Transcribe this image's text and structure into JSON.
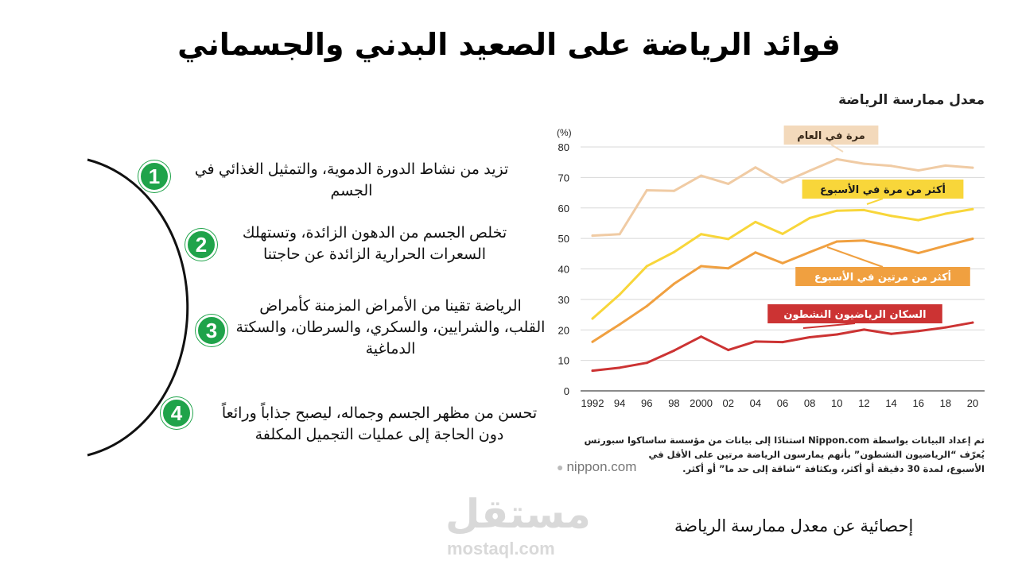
{
  "page": {
    "title": "فوائد الرياضة على الصعيد البدني والجسماني",
    "caption": "إحصائية عن معدل ممارسة الرياضة"
  },
  "benefits": [
    {
      "number": "1",
      "lines": [
        "تزيد من نشاط الدورة الدموية، والتمثيل الغذائي في الجسم"
      ]
    },
    {
      "number": "2",
      "lines": [
        "تخلص الجسم من الدهون الزائدة، وتستهلك",
        "السعرات الحرارية الزائدة عن حاجتنا"
      ]
    },
    {
      "number": "3",
      "lines": [
        "الرياضة تقينا من الأمراض المزمنة كأمراض",
        "القلب، والشرايين، والسكري، والسرطان، والسكتة",
        "الدماغية"
      ]
    },
    {
      "number": "4",
      "lines": [
        "تحسن من مظهر الجسم وجماله، ليصبح جذاباً ورائعاً",
        "دون الحاجة إلى عمليات التجميل المكلفة"
      ]
    }
  ],
  "source_note": [
    "تم إعداد البيانات بواسطة Nippon.com استنادًا إلى بيانات من مؤسسة ساساكوا سبورتس",
    "يُعرّف “الرياضيون النشطون” بأنهم يمارسون الرياضة مرتين على الأقل في",
    "الأسبوع، لمدة 30 دقيقة أو أكثر، وبكثافة “شاقة إلى حد ما” أو أكثر."
  ],
  "source_logo": "nippon.com",
  "watermark": {
    "arabic": "مستقل",
    "latin": "mostaql.com"
  },
  "colors": {
    "green": "#1fa34a"
  },
  "chart_data": {
    "type": "line",
    "title": "معدل ممارسة الرياضة",
    "ylabel": "(%)",
    "ylim": [
      0,
      80
    ],
    "yticks": [
      0,
      10,
      20,
      30,
      40,
      50,
      60,
      70,
      80
    ],
    "grid": true,
    "categories": [
      "1992",
      "94",
      "96",
      "98",
      "2000",
      "02",
      "04",
      "06",
      "08",
      "10",
      "12",
      "14",
      "16",
      "18",
      "20"
    ],
    "series": [
      {
        "name": "مرة في العام",
        "color": "#f0cba4",
        "label_bg": "#f3d9bb",
        "label_color": "#3a2a1a",
        "values": [
          50.9,
          51.4,
          65.8,
          65.6,
          70.6,
          67.9,
          73.3,
          68.3,
          72.2,
          76.0,
          74.5,
          73.8,
          72.3,
          73.9,
          73.2
        ]
      },
      {
        "name": "أكثر من مرة في الأسبوع",
        "color": "#f8d63a",
        "label_bg": "#f8d63a",
        "label_color": "#1a1a1a",
        "values": [
          23.7,
          31.6,
          40.9,
          45.5,
          51.4,
          49.8,
          55.4,
          51.5,
          56.7,
          59.1,
          59.3,
          57.4,
          56.0,
          58.1,
          59.6
        ]
      },
      {
        "name": "أكثر من مرتين في الأسبوع",
        "color": "#f0a040",
        "label_bg": "#f0a040",
        "label_color": "#ffffff",
        "values": [
          16.1,
          21.8,
          27.8,
          35.1,
          40.9,
          40.2,
          45.4,
          41.9,
          45.5,
          49.0,
          49.3,
          47.5,
          45.2,
          47.6,
          49.9
        ]
      },
      {
        "name": "السكان الرياضيون النشطون",
        "color": "#cc3333",
        "label_bg": "#cc3333",
        "label_color": "#ffffff",
        "values": [
          6.6,
          7.6,
          9.2,
          13.2,
          17.8,
          13.4,
          16.2,
          16.0,
          17.6,
          18.5,
          20.1,
          18.7,
          19.6,
          20.8,
          22.4
        ]
      }
    ]
  }
}
